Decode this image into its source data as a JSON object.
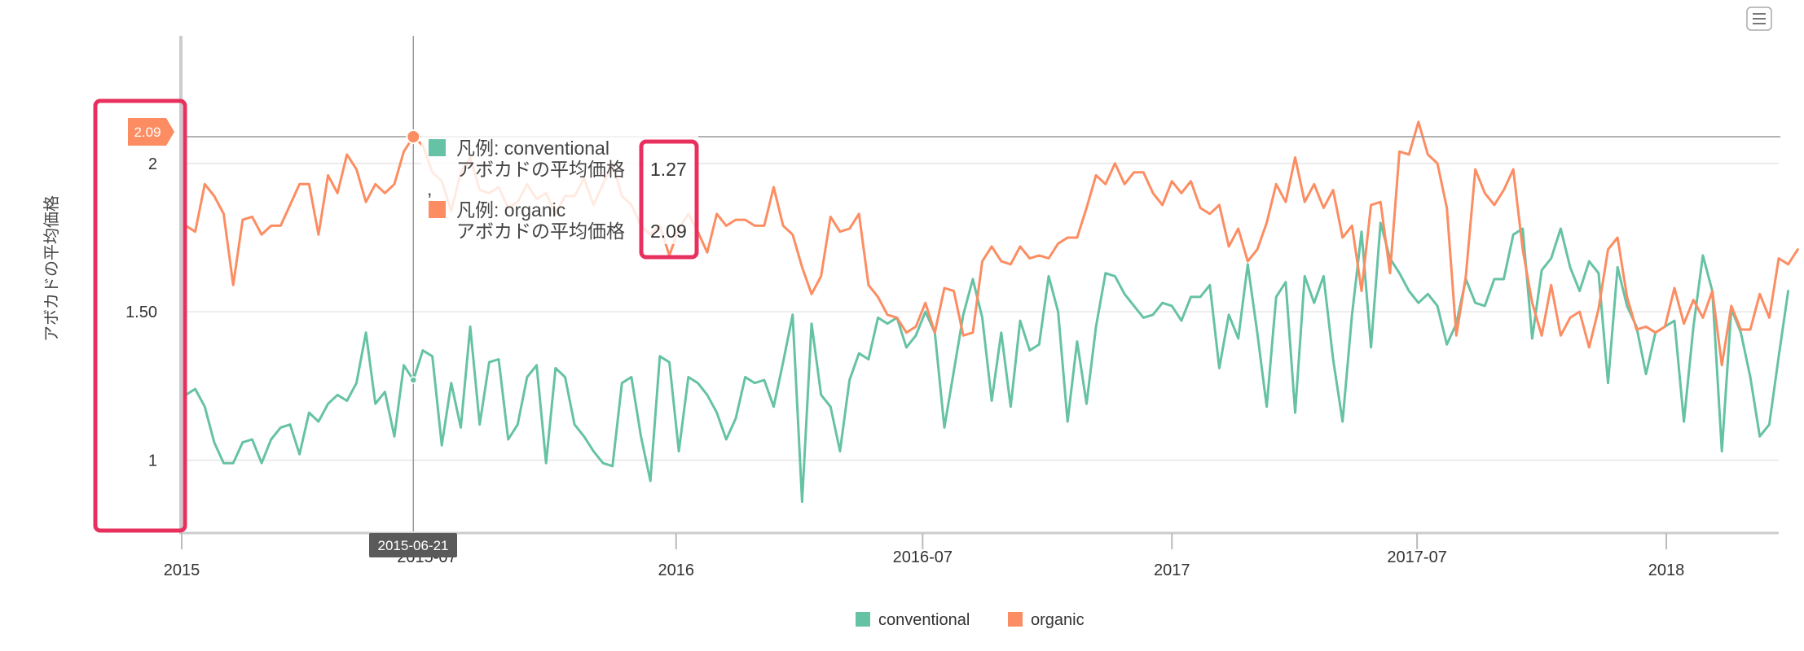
{
  "menu_icon": "hamburger-menu-icon",
  "colors": {
    "conventional": "#66c2a5",
    "organic": "#fc8d62",
    "highlight": "#e8305f",
    "grid": "#e6e6e6",
    "crosshair": "#999999",
    "crosshair_label_bg": "#5a5a5a"
  },
  "crosshair": {
    "x_label": "2015-06-21",
    "y_label": "2.09",
    "x_date": "2015-06-21",
    "y_value": 2.09
  },
  "tooltip": {
    "rows": [
      {
        "series": "conventional",
        "line1": "凡例: conventional",
        "line2": "アボカドの平均価格",
        "value": "1.27"
      },
      {
        "series": "organic",
        "line1": "凡例: organic",
        "line2": "アボカドの平均価格",
        "value": "2.09"
      }
    ],
    "separator": ","
  },
  "chart_data": {
    "type": "line",
    "title": "",
    "xlabel": "",
    "ylabel": "アボカドの平均価格",
    "xlim": [
      "2015-01-04",
      "2018-03-25"
    ],
    "ylim": [
      0.76,
      2.43
    ],
    "grid": true,
    "legend_position": "bottom-center",
    "x_ticks": [
      {
        "date": "2015-01-01",
        "label": "2015"
      },
      {
        "date": "2015-07-01",
        "label": "2015-07"
      },
      {
        "date": "2016-01-01",
        "label": "2016"
      },
      {
        "date": "2016-07-01",
        "label": "2016-07"
      },
      {
        "date": "2017-01-01",
        "label": "2017"
      },
      {
        "date": "2017-07-01",
        "label": "2017-07"
      },
      {
        "date": "2018-01-01",
        "label": "2018"
      }
    ],
    "y_ticks": [
      {
        "value": 1,
        "label": "1"
      },
      {
        "value": 1.5,
        "label": "1.50"
      },
      {
        "value": 2,
        "label": "2"
      }
    ],
    "series": [
      {
        "name": "conventional",
        "x_start": "2015-01-04",
        "x_step_days": 7,
        "values": [
          1.22,
          1.24,
          1.18,
          1.06,
          0.99,
          0.99,
          1.06,
          1.07,
          0.99,
          1.07,
          1.11,
          1.12,
          1.02,
          1.16,
          1.13,
          1.19,
          1.22,
          1.2,
          1.26,
          1.43,
          1.19,
          1.23,
          1.08,
          1.32,
          1.27,
          1.37,
          1.35,
          1.05,
          1.26,
          1.11,
          1.45,
          1.12,
          1.33,
          1.34,
          1.07,
          1.12,
          1.28,
          1.32,
          0.99,
          1.31,
          1.28,
          1.12,
          1.08,
          1.03,
          0.99,
          0.98,
          1.26,
          1.28,
          1.08,
          0.93,
          1.35,
          1.33,
          1.03,
          1.28,
          1.26,
          1.22,
          1.16,
          1.07,
          1.14,
          1.28,
          1.26,
          1.27,
          1.18,
          1.33,
          1.49,
          0.86,
          1.46,
          1.22,
          1.18,
          1.03,
          1.27,
          1.36,
          1.34,
          1.48,
          1.46,
          1.48,
          1.38,
          1.42,
          1.5,
          1.43,
          1.11,
          1.3,
          1.49,
          1.61,
          1.48,
          1.2,
          1.43,
          1.18,
          1.47,
          1.37,
          1.39,
          1.62,
          1.5,
          1.13,
          1.4,
          1.19,
          1.45,
          1.63,
          1.62,
          1.56,
          1.52,
          1.48,
          1.49,
          1.53,
          1.52,
          1.47,
          1.55,
          1.55,
          1.59,
          1.31,
          1.49,
          1.41,
          1.66,
          1.43,
          1.18,
          1.55,
          1.6,
          1.16,
          1.62,
          1.53,
          1.62,
          1.34,
          1.13,
          1.49,
          1.77,
          1.38,
          1.8,
          1.68,
          1.63,
          1.57,
          1.53,
          1.56,
          1.52,
          1.39,
          1.46,
          1.61,
          1.53,
          1.52,
          1.61,
          1.61,
          1.76,
          1.78,
          1.41,
          1.64,
          1.68,
          1.78,
          1.65,
          1.57,
          1.67,
          1.63,
          1.26,
          1.65,
          1.52,
          1.45,
          1.29,
          1.43,
          1.45,
          1.47,
          1.13,
          1.45,
          1.69,
          1.57,
          1.03,
          1.51,
          1.43,
          1.28,
          1.08,
          1.12,
          1.35,
          1.57
        ]
      },
      {
        "name": "organic",
        "x_start": "2015-01-04",
        "x_step_days": 7,
        "values": [
          1.79,
          1.77,
          1.93,
          1.89,
          1.83,
          1.59,
          1.81,
          1.82,
          1.76,
          1.79,
          1.79,
          1.86,
          1.93,
          1.93,
          1.76,
          1.96,
          1.9,
          2.03,
          1.98,
          1.87,
          1.93,
          1.9,
          1.93,
          2.04,
          2.09,
          2.06,
          1.97,
          1.94,
          1.84,
          1.97,
          2.02,
          1.91,
          1.9,
          1.92,
          1.85,
          1.87,
          1.93,
          1.88,
          1.9,
          1.83,
          1.89,
          1.89,
          1.95,
          1.86,
          1.93,
          2.0,
          1.89,
          1.86,
          1.79,
          1.76,
          1.79,
          1.69,
          1.78,
          1.83,
          1.77,
          1.7,
          1.83,
          1.79,
          1.81,
          1.81,
          1.79,
          1.79,
          1.92,
          1.79,
          1.76,
          1.65,
          1.56,
          1.62,
          1.82,
          1.77,
          1.78,
          1.83,
          1.59,
          1.55,
          1.49,
          1.48,
          1.43,
          1.45,
          1.53,
          1.43,
          1.58,
          1.57,
          1.42,
          1.43,
          1.67,
          1.72,
          1.67,
          1.66,
          1.72,
          1.68,
          1.69,
          1.68,
          1.73,
          1.75,
          1.75,
          1.85,
          1.96,
          1.93,
          2.0,
          1.93,
          1.97,
          1.97,
          1.9,
          1.86,
          1.94,
          1.9,
          1.94,
          1.85,
          1.83,
          1.86,
          1.72,
          1.78,
          1.67,
          1.71,
          1.8,
          1.93,
          1.87,
          2.02,
          1.87,
          1.93,
          1.85,
          1.91,
          1.75,
          1.79,
          1.57,
          1.86,
          1.87,
          1.63,
          2.04,
          2.03,
          2.14,
          2.03,
          2.0,
          1.85,
          1.42,
          1.62,
          1.98,
          1.9,
          1.86,
          1.91,
          1.98,
          1.71,
          1.53,
          1.42,
          1.59,
          1.42,
          1.48,
          1.5,
          1.38,
          1.51,
          1.71,
          1.75,
          1.55,
          1.44,
          1.45,
          1.43,
          1.45,
          1.58,
          1.46,
          1.54,
          1.48,
          1.57,
          1.32,
          1.52,
          1.44,
          1.44,
          1.56,
          1.48,
          1.68,
          1.66,
          1.71
        ]
      }
    ]
  }
}
